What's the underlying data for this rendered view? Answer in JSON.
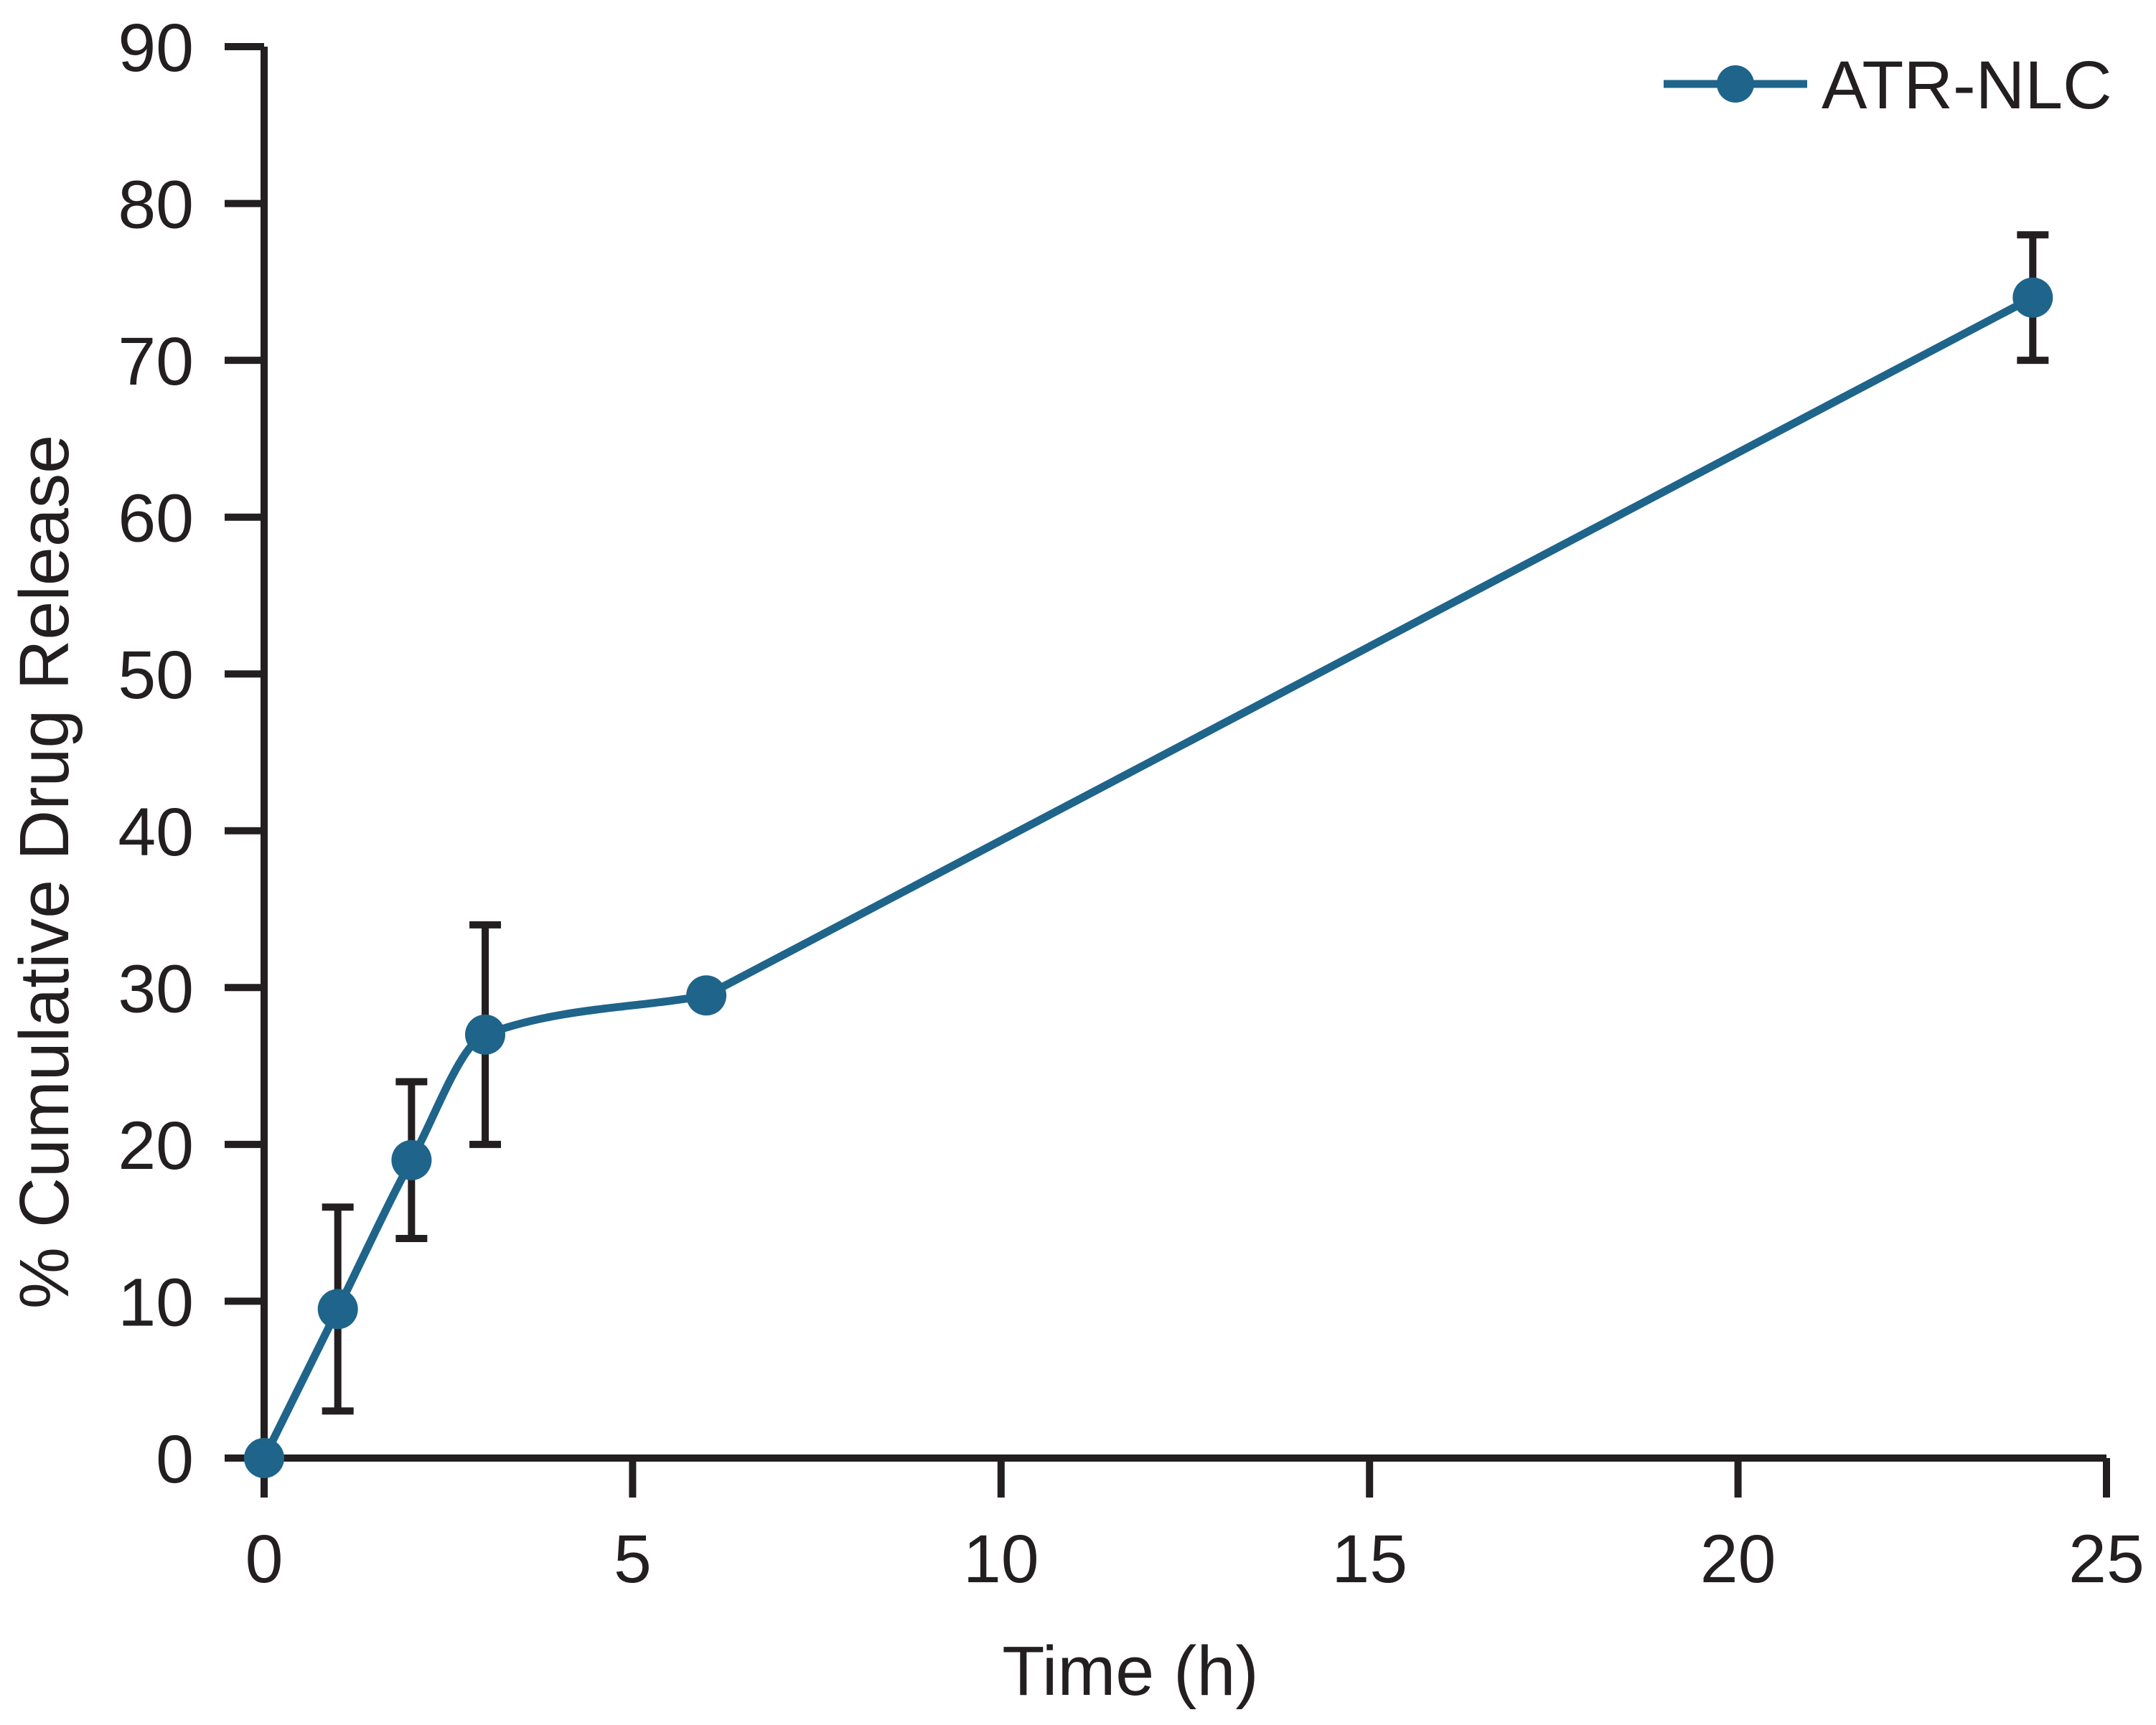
{
  "chart_data": {
    "type": "line",
    "title": "",
    "xlabel": "Time (h)",
    "ylabel": "% Cumulative Drug Release",
    "x": [
      0,
      1,
      2,
      3,
      6,
      24
    ],
    "series": [
      {
        "name": "ATR-NLC",
        "values": [
          0,
          9.5,
          19,
          27,
          29.5,
          74
        ],
        "error": [
          0,
          6.5,
          5,
          7,
          0,
          4
        ],
        "color": "#1f648a",
        "marker": "circle"
      }
    ],
    "xlim": [
      0,
      25
    ],
    "ylim": [
      0,
      90
    ],
    "xticks": [
      0,
      5,
      10,
      15,
      20,
      25
    ],
    "yticks": [
      0,
      10,
      20,
      30,
      40,
      50,
      60,
      70,
      80,
      90
    ],
    "grid": false,
    "legend_position": "top-right",
    "smooth_end_index": 4,
    "axis_color": "#231f20",
    "error_bar_color": "#231f20",
    "background_color": "#ffffff"
  }
}
